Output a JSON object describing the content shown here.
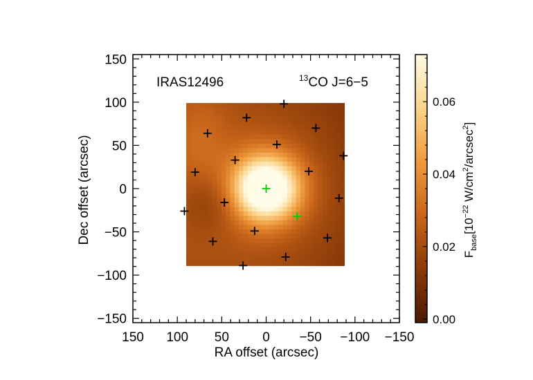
{
  "chart_data": {
    "type": "heatmap",
    "object_label": "IRAS12496",
    "line_label": {
      "superscript": "13",
      "main": "CO J=6−5"
    },
    "xlabel": "RA offset (arcsec)",
    "ylabel": "Dec offset (arcsec)",
    "xlim": [
      150,
      -150
    ],
    "ylim": [
      -155,
      155
    ],
    "xticks": [
      150,
      100,
      50,
      0,
      -50,
      -100,
      -150
    ],
    "xtick_labels": [
      "150",
      "100",
      "50",
      "0",
      "−50",
      "−100",
      "−150"
    ],
    "yticks": [
      150,
      100,
      50,
      0,
      -50,
      -100,
      -150
    ],
    "ytick_labels": [
      "150",
      "100",
      "50",
      "0",
      "−50",
      "−100",
      "−150"
    ],
    "map_extent": {
      "ra": [
        90,
        -88
      ],
      "dec": [
        -89,
        99
      ]
    },
    "peak_position": {
      "ra": 0,
      "dec": 0
    },
    "colorbar": {
      "label_main": "F",
      "label_sub": "base",
      "label_units_pre": "[10",
      "label_exp1": "−22",
      "label_units_mid": " W/cm",
      "label_exp2": "2",
      "label_units_mid2": "/arcsec",
      "label_exp3": "2",
      "label_units_post": "]",
      "range": [
        -0.001,
        0.073
      ],
      "ticks": [
        0.0,
        0.02,
        0.04,
        0.06
      ],
      "tick_labels": [
        "0.00",
        "0.02",
        "0.04",
        "0.06"
      ],
      "colors": [
        "#4a1a00",
        "#8a3a08",
        "#c9651a",
        "#ee9a3c",
        "#fbd48c",
        "#fffbe6"
      ]
    },
    "pixel_positions": {
      "black": [
        {
          "ra": 92,
          "dec": -26
        },
        {
          "ra": 80,
          "dec": 19
        },
        {
          "ra": 66,
          "dec": 64
        },
        {
          "ra": 22,
          "dec": 82
        },
        {
          "ra": -20,
          "dec": 98
        },
        {
          "ra": -56,
          "dec": 70
        },
        {
          "ra": -87,
          "dec": 38
        },
        {
          "ra": -82,
          "dec": -11
        },
        {
          "ra": -69,
          "dec": -57
        },
        {
          "ra": -22,
          "dec": -79
        },
        {
          "ra": 26,
          "dec": -89
        },
        {
          "ra": 60,
          "dec": -61
        },
        {
          "ra": 47,
          "dec": -16
        },
        {
          "ra": 35,
          "dec": 33
        },
        {
          "ra": -12,
          "dec": 51
        },
        {
          "ra": -48,
          "dec": 20
        },
        {
          "ra": 13,
          "dec": -49
        }
      ],
      "green": [
        {
          "ra": 0,
          "dec": 0
        },
        {
          "ra": -35,
          "dec": -32
        }
      ]
    },
    "marker_colors": {
      "black": "#000000",
      "green": "#00cc00"
    }
  }
}
